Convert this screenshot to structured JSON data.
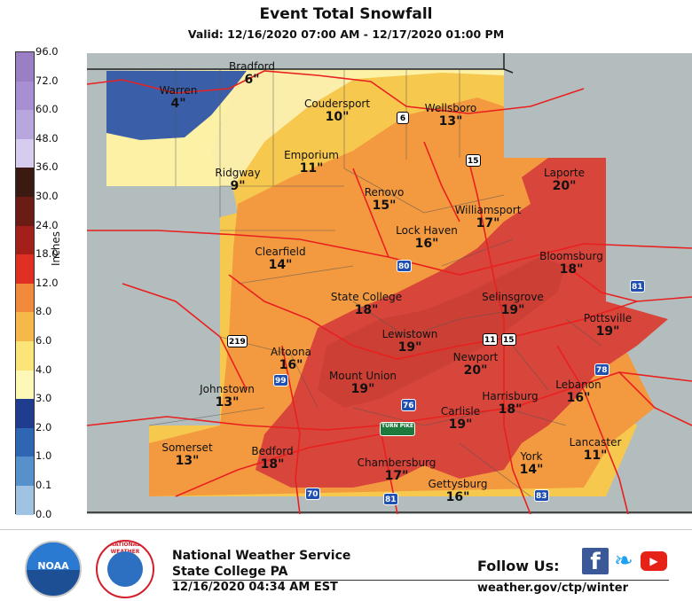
{
  "header": {
    "title": "Event Total Snowfall",
    "valid": "Valid: 12/16/2020 07:00 AM - 12/17/2020 01:00 PM"
  },
  "legend": {
    "units": "Inches",
    "stops": [
      {
        "label": "96.0",
        "color": "#9b7fc4"
      },
      {
        "label": "72.0",
        "color": "#a88fd2"
      },
      {
        "label": "60.0",
        "color": "#b8a6de"
      },
      {
        "label": "48.0",
        "color": "#d6ccf0"
      },
      {
        "label": "36.0",
        "color": "#3b1a12"
      },
      {
        "label": "30.0",
        "color": "#6b1c14"
      },
      {
        "label": "24.0",
        "color": "#a41e1a"
      },
      {
        "label": "18.0",
        "color": "#e03024"
      },
      {
        "label": "12.0",
        "color": "#f28a3c"
      },
      {
        "label": "8.0",
        "color": "#f7b84a"
      },
      {
        "label": "6.0",
        "color": "#fbe478"
      },
      {
        "label": "4.0",
        "color": "#fdf7b8"
      },
      {
        "label": "3.0",
        "color": "#1e3d8f"
      },
      {
        "label": "2.0",
        "color": "#2f66b4"
      },
      {
        "label": "1.0",
        "color": "#5691cc"
      },
      {
        "label": "0.1",
        "color": "#9fc3e2"
      },
      {
        "label": "0.0",
        "color": "#c8dcec"
      }
    ],
    "bottom_color": "#ffffff"
  },
  "map": {
    "background_color": "#b3bdbd",
    "cities": [
      {
        "name": "Bradford",
        "value": "6\""
      },
      {
        "name": "Warren",
        "value": "4\""
      },
      {
        "name": "Coudersport",
        "value": "10\""
      },
      {
        "name": "Wellsboro",
        "value": "13\""
      },
      {
        "name": "Emporium",
        "value": "11\""
      },
      {
        "name": "Ridgway",
        "value": "9\""
      },
      {
        "name": "Laporte",
        "value": "20\""
      },
      {
        "name": "Renovo",
        "value": "15\""
      },
      {
        "name": "Williamsport",
        "value": "17\""
      },
      {
        "name": "Lock Haven",
        "value": "16\""
      },
      {
        "name": "Clearfield",
        "value": "14\""
      },
      {
        "name": "Bloomsburg",
        "value": "18\""
      },
      {
        "name": "State College",
        "value": "18\""
      },
      {
        "name": "Selinsgrove",
        "value": "19\""
      },
      {
        "name": "Pottsville",
        "value": "19\""
      },
      {
        "name": "Lewistown",
        "value": "19\""
      },
      {
        "name": "Altoona",
        "value": "16\""
      },
      {
        "name": "Newport",
        "value": "20\""
      },
      {
        "name": "Mount Union",
        "value": "19\""
      },
      {
        "name": "Johnstown",
        "value": "13\""
      },
      {
        "name": "Lebanon",
        "value": "16\""
      },
      {
        "name": "Harrisburg",
        "value": "18\""
      },
      {
        "name": "Carlisle",
        "value": "19\""
      },
      {
        "name": "Somerset",
        "value": "13\""
      },
      {
        "name": "Bedford",
        "value": "18\""
      },
      {
        "name": "Lancaster",
        "value": "11\""
      },
      {
        "name": "York",
        "value": "14\""
      },
      {
        "name": "Chambersburg",
        "value": "17\""
      },
      {
        "name": "Gettysburg",
        "value": "16\""
      }
    ],
    "shields": [
      {
        "label": "6",
        "kind": "us"
      },
      {
        "label": "15",
        "kind": "us"
      },
      {
        "label": "80",
        "kind": "int"
      },
      {
        "label": "81",
        "kind": "int"
      },
      {
        "label": "11",
        "kind": "us"
      },
      {
        "label": "15",
        "kind": "us"
      },
      {
        "label": "219",
        "kind": "us"
      },
      {
        "label": "78",
        "kind": "int"
      },
      {
        "label": "99",
        "kind": "int"
      },
      {
        "label": "76",
        "kind": "int"
      },
      {
        "label": "TURN PIKE",
        "kind": "turn"
      },
      {
        "label": "70",
        "kind": "int"
      },
      {
        "label": "81",
        "kind": "int"
      },
      {
        "label": "83",
        "kind": "int"
      }
    ]
  },
  "footer": {
    "noaa_logo": "NOAA",
    "nws_logo": "NATIONAL WEATHER SERVICE",
    "office_line1": "National Weather Service",
    "office_line2": "State College PA",
    "issued": "12/16/2020 04:34 AM EST",
    "follow": "Follow Us:",
    "facebook_icon": "f",
    "twitter_icon": "❧",
    "youtube_icon": "▶",
    "website": "weather.gov/ctp/winter"
  }
}
